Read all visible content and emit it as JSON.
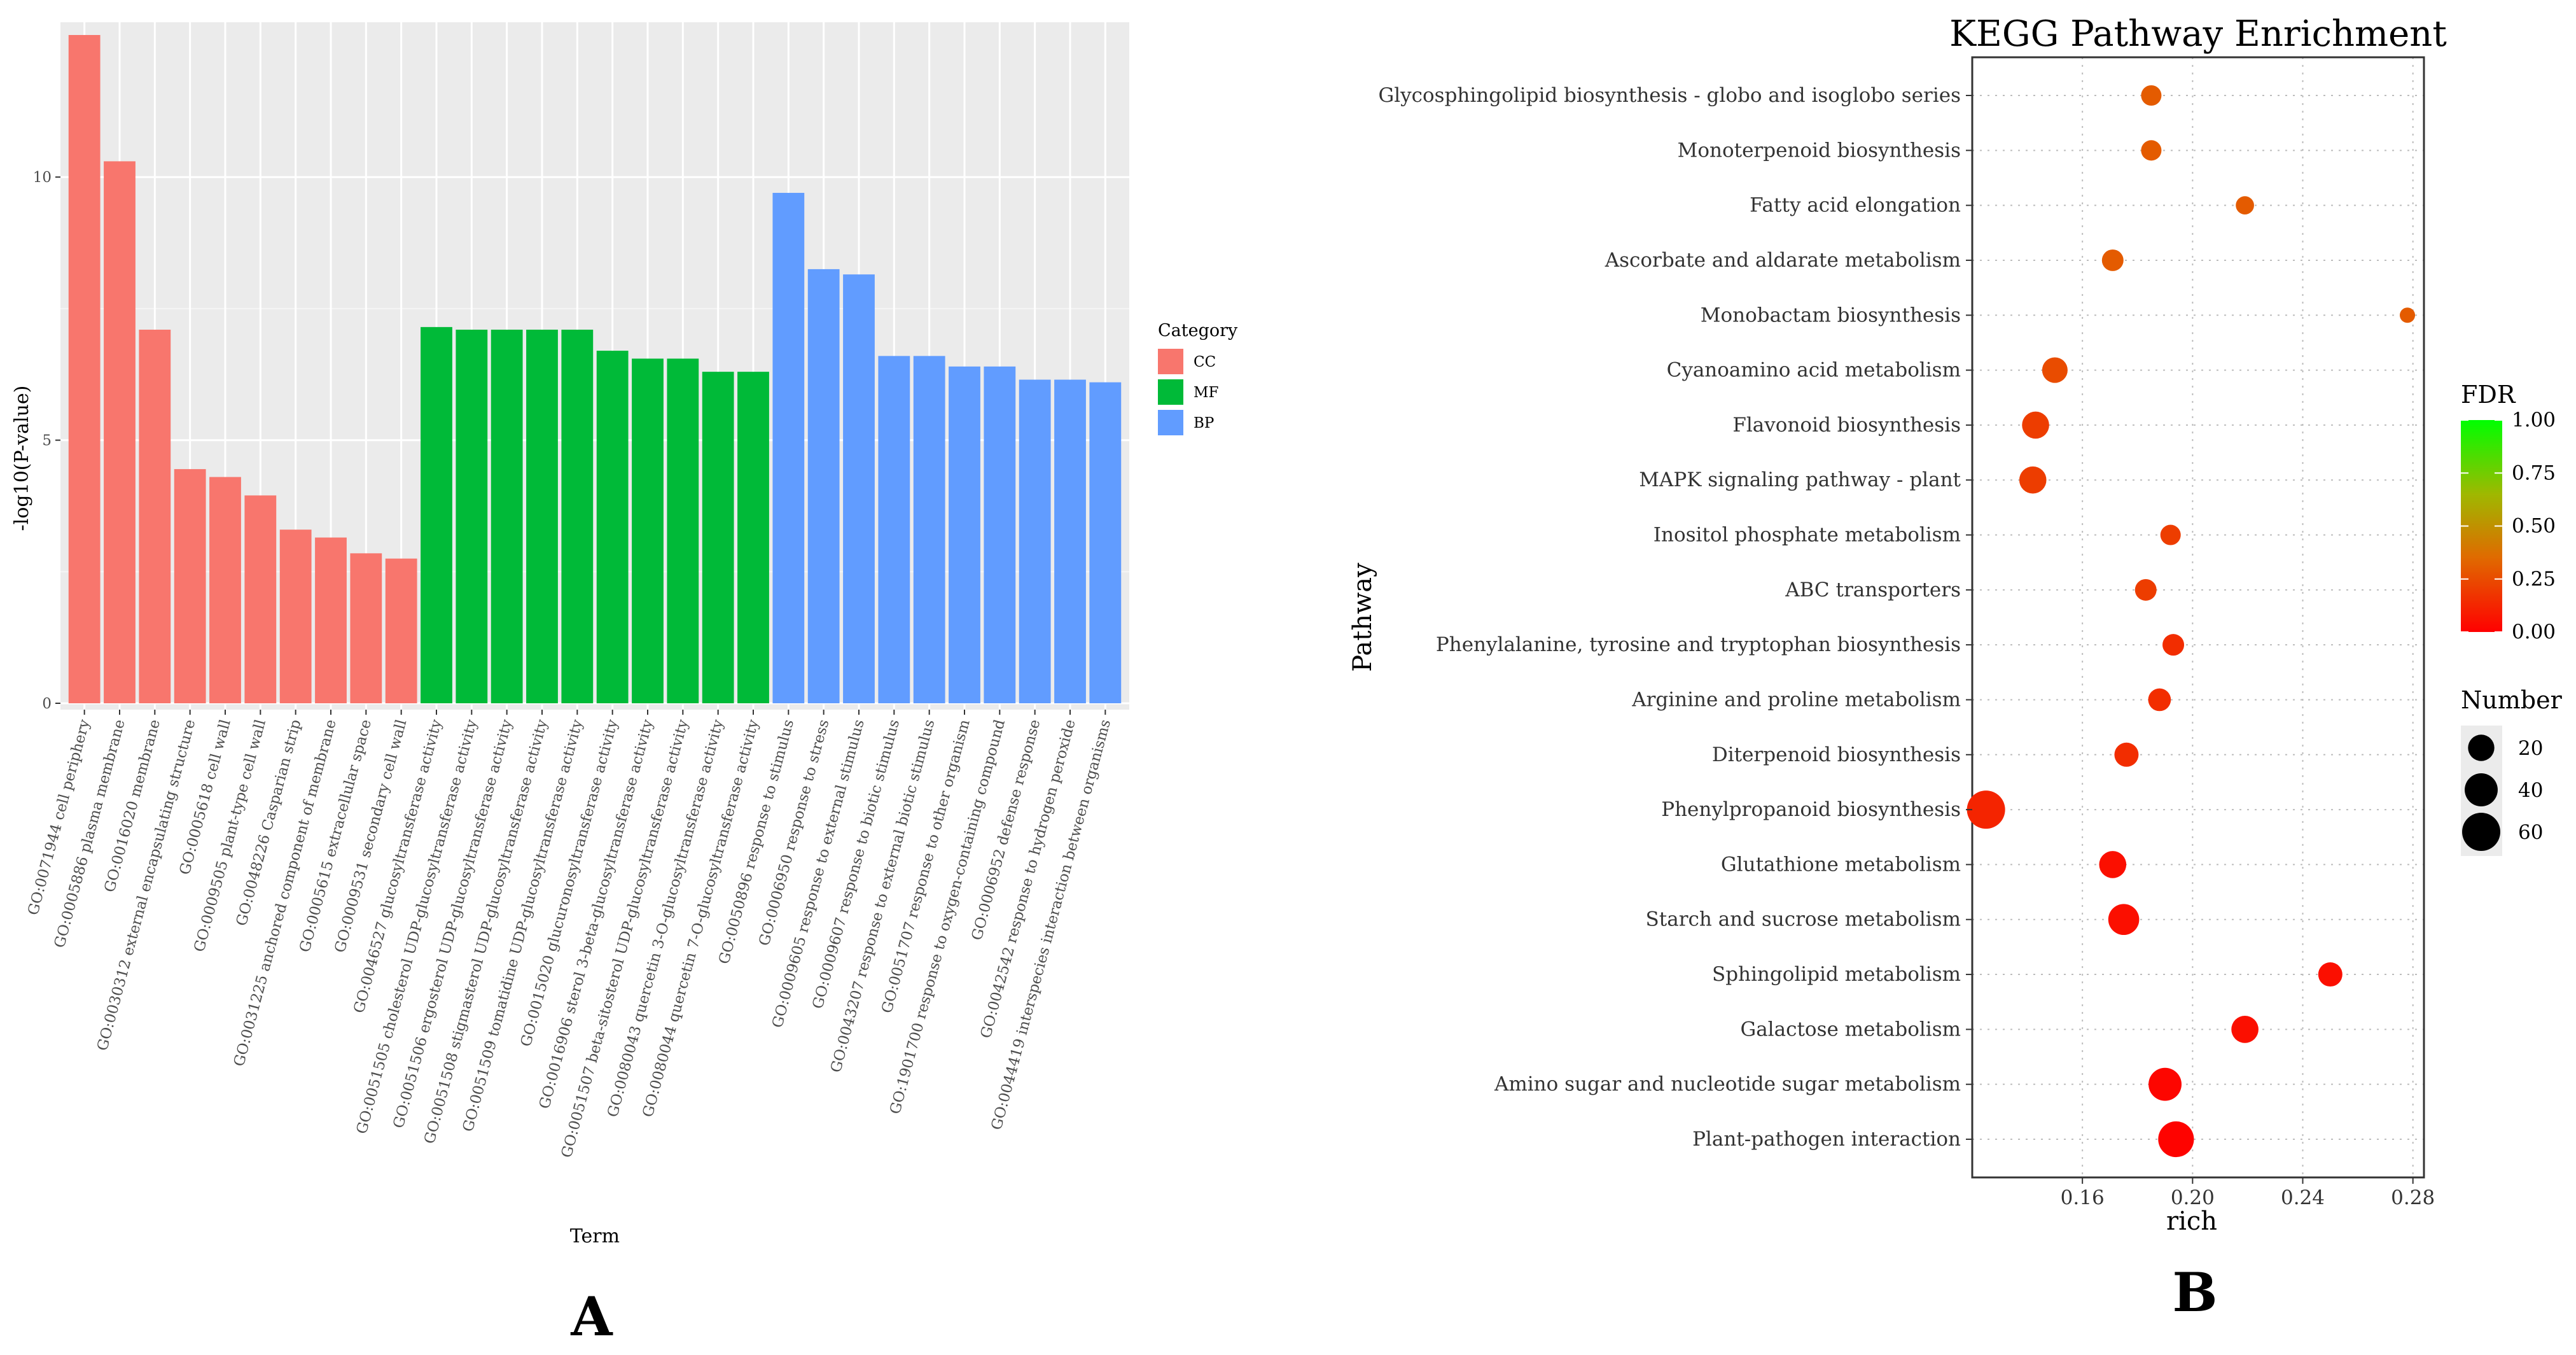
{
  "chart_data": [
    {
      "type": "bar",
      "panel_label": "A",
      "xlabel": "Term",
      "ylabel": "-log10(P-value)",
      "ylim": [
        0,
        12.6
      ],
      "yticks": [
        0,
        5,
        10
      ],
      "grid": true,
      "legend": {
        "title": "Category",
        "position": "right",
        "entries": [
          "CC",
          "MF",
          "BP"
        ]
      },
      "category_colors": {
        "CC": "#f8766d",
        "MF": "#00ba38",
        "BP": "#619cff"
      },
      "categories": [
        "GO:0071944 cell periphery",
        "GO:0005886 plasma membrane",
        "GO:0016020 membrane",
        "GO:0030312 external encapsulating structure",
        "GO:0005618 cell wall",
        "GO:0009505 plant-type cell wall",
        "GO:0048226 Casparian strip",
        "GO:0031225 anchored component of membrane",
        "GO:0005615 extracellular space",
        "GO:0009531 secondary cell wall",
        "GO:0046527 glucosyltransferase activity",
        "GO:0051505 cholesterol UDP-glucosyltransferase activity",
        "GO:0051506 ergosterol UDP-glucosyltransferase activity",
        "GO:0051508 stigmasterol UDP-glucosyltransferase activity",
        "GO:0051509 tomatidine UDP-glucosyltransferase activity",
        "GO:0015020 glucuronosyltransferase activity",
        "GO:0016906 sterol 3-beta-glucosyltransferase activity",
        "GO:0051507 beta-sitosterol UDP-glucosyltransferase activity",
        "GO:0080043 quercetin 3-O-glucosyltransferase activity",
        "GO:0080044 quercetin 7-O-glucosyltransferase activity",
        "GO:0050896 response to stimulus",
        "GO:0006950 response to stress",
        "GO:0009605 response to external stimulus",
        "GO:0009607 response to biotic stimulus",
        "GO:0043207 response to external biotic stimulus",
        "GO:0051707 response to other organism",
        "GO:1901700 response to oxygen-containing compound",
        "GO:0006952 defense response",
        "GO:0042542 response to hydrogen peroxide",
        "GO:0044419 interspecies interaction between organisms"
      ],
      "values": [
        12.7,
        10.3,
        7.1,
        4.45,
        4.3,
        3.95,
        3.3,
        3.15,
        2.85,
        2.75,
        7.15,
        7.1,
        7.1,
        7.1,
        7.1,
        6.7,
        6.55,
        6.55,
        6.3,
        6.3,
        9.7,
        8.25,
        8.15,
        6.6,
        6.6,
        6.4,
        6.4,
        6.15,
        6.15,
        6.1
      ],
      "groups": [
        "CC",
        "CC",
        "CC",
        "CC",
        "CC",
        "CC",
        "CC",
        "CC",
        "CC",
        "CC",
        "MF",
        "MF",
        "MF",
        "MF",
        "MF",
        "MF",
        "MF",
        "MF",
        "MF",
        "MF",
        "BP",
        "BP",
        "BP",
        "BP",
        "BP",
        "BP",
        "BP",
        "BP",
        "BP",
        "BP"
      ]
    },
    {
      "type": "scatter",
      "panel_label": "B",
      "title": "KEGG Pathway Enrichment",
      "xlabel": "rich",
      "ylabel": "Pathway",
      "xlim": [
        0.12,
        0.284
      ],
      "xticks": [
        0.16,
        0.2,
        0.24,
        0.28
      ],
      "xtick_labels": [
        "0.16",
        "0.20",
        "0.24",
        "0.28"
      ],
      "color_legend": {
        "title": "FDR",
        "ticks": [
          "1.00",
          "0.75",
          "0.50",
          "0.25",
          "0.00"
        ],
        "low_color": "#ff0000",
        "high_color": "#00ff00"
      },
      "size_legend": {
        "title": "Number",
        "values": [
          20,
          40,
          60
        ]
      },
      "pathways": [
        "Glycosphingolipid biosynthesis - globo and isoglobo series",
        "Monoterpenoid biosynthesis",
        "Fatty acid elongation",
        "Ascorbate and aldarate metabolism",
        "Monobactam biosynthesis",
        "Cyanoamino acid metabolism",
        "Flavonoid biosynthesis",
        "MAPK signaling pathway - plant",
        "Inositol phosphate metabolism",
        "ABC transporters",
        "Phenylalanine, tyrosine and tryptophan biosynthesis",
        "Arginine and proline metabolism",
        "Diterpenoid biosynthesis",
        "Phenylpropanoid biosynthesis",
        "Glutathione metabolism",
        "Starch and sucrose metabolism",
        "Sphingolipid metabolism",
        "Galactose metabolism",
        "Amino sugar and nucleotide sugar metabolism",
        "Plant-pathogen interaction"
      ],
      "rich": [
        0.185,
        0.185,
        0.219,
        0.171,
        0.278,
        0.15,
        0.143,
        0.142,
        0.192,
        0.183,
        0.193,
        0.188,
        0.176,
        0.125,
        0.171,
        0.175,
        0.25,
        0.219,
        0.19,
        0.194
      ],
      "number": [
        8,
        8,
        5,
        10,
        2,
        18,
        22,
        22,
        8,
        10,
        10,
        12,
        15,
        60,
        22,
        33,
        15,
        22,
        40,
        50
      ],
      "fdr": [
        0.3,
        0.3,
        0.3,
        0.3,
        0.3,
        0.25,
        0.2,
        0.2,
        0.2,
        0.2,
        0.15,
        0.15,
        0.15,
        0.12,
        0.05,
        0.05,
        0.05,
        0.05,
        0.02,
        0.01
      ]
    }
  ]
}
